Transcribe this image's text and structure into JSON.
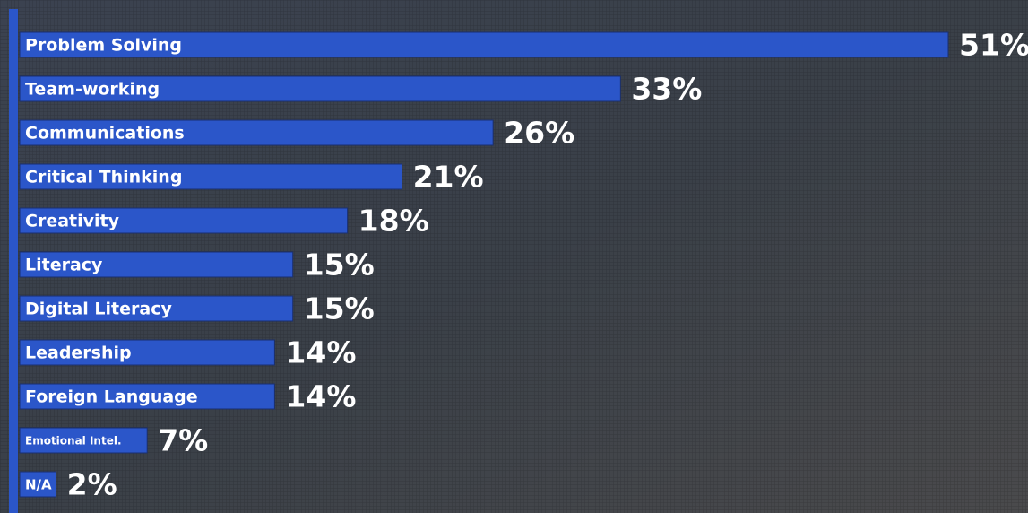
{
  "chart_data": {
    "type": "bar",
    "orientation": "horizontal",
    "categories": [
      "Problem Solving",
      "Team-working",
      "Communications",
      "Critical Thinking",
      "Creativity",
      "Literacy",
      "Digital Literacy",
      "Leadership",
      "Foreign Language",
      "Emotional Intel.",
      "N/A"
    ],
    "values": [
      51,
      33,
      26,
      21,
      18,
      15,
      15,
      14,
      14,
      7,
      2
    ],
    "value_labels": [
      "51%",
      "33%",
      "26%",
      "21%",
      "18%",
      "15%",
      "15%",
      "14%",
      "14%",
      "7%",
      "2%"
    ],
    "color": "#2b56c9"
  }
}
